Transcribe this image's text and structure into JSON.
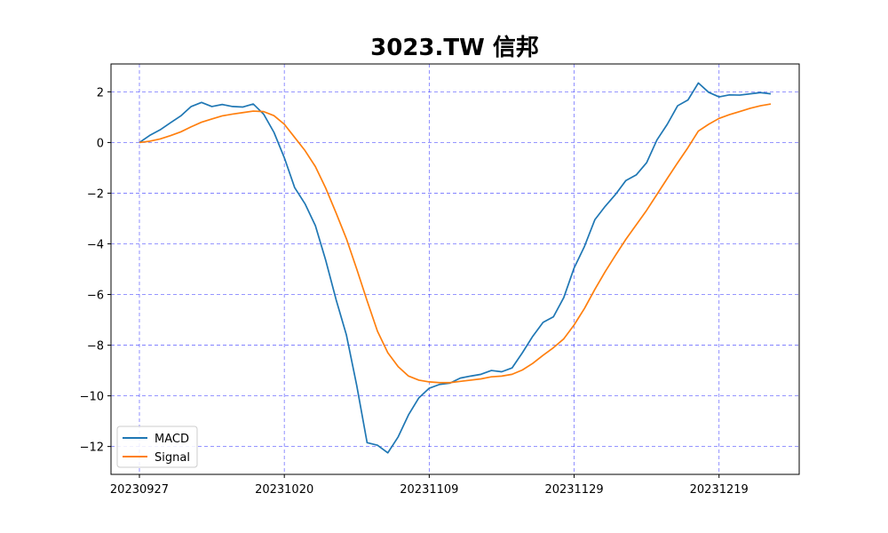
{
  "chart_data": {
    "type": "line",
    "title": "3023.TW 信邦",
    "xlabel": "",
    "ylabel": "",
    "ylim": [
      -13.1,
      3.1
    ],
    "yticks": [
      2,
      0,
      -2,
      -4,
      -6,
      -8,
      -10,
      -12
    ],
    "ytick_labels": [
      "2",
      "0",
      "−2",
      "−4",
      "−6",
      "−8",
      "−10",
      "−12"
    ],
    "xticks": [
      {
        "index": 0,
        "label": "20230927"
      },
      {
        "index": 14,
        "label": "20231020"
      },
      {
        "index": 28,
        "label": "20231109"
      },
      {
        "index": 42,
        "label": "20231129"
      },
      {
        "index": 56,
        "label": "20231219"
      }
    ],
    "x_count": 62,
    "grid": true,
    "legend_position": "lower-left",
    "series": [
      {
        "name": "MACD",
        "color": "#1f77b4",
        "values": [
          0.0,
          0.28,
          0.5,
          0.78,
          1.05,
          1.42,
          1.58,
          1.42,
          1.5,
          1.42,
          1.4,
          1.52,
          1.12,
          0.4,
          -0.6,
          -1.78,
          -2.42,
          -3.28,
          -4.65,
          -6.2,
          -7.6,
          -9.6,
          -11.85,
          -11.95,
          -12.25,
          -11.62,
          -10.75,
          -10.08,
          -9.7,
          -9.55,
          -9.5,
          -9.3,
          -9.22,
          -9.15,
          -9.0,
          -9.05,
          -8.9,
          -8.3,
          -7.65,
          -7.1,
          -6.88,
          -6.12,
          -4.95,
          -4.1,
          -3.05,
          -2.52,
          -2.05,
          -1.5,
          -1.28,
          -0.8,
          0.1,
          0.72,
          1.45,
          1.68,
          2.35,
          1.98,
          1.8,
          1.88,
          1.87,
          1.92,
          1.97,
          1.92
        ]
      },
      {
        "name": "Signal",
        "color": "#ff7f0e",
        "values": [
          0.0,
          0.05,
          0.14,
          0.27,
          0.42,
          0.62,
          0.8,
          0.93,
          1.05,
          1.12,
          1.18,
          1.24,
          1.22,
          1.06,
          0.72,
          0.2,
          -0.32,
          -0.95,
          -1.8,
          -2.78,
          -3.8,
          -5.0,
          -6.25,
          -7.45,
          -8.3,
          -8.85,
          -9.22,
          -9.38,
          -9.45,
          -9.48,
          -9.48,
          -9.43,
          -9.38,
          -9.33,
          -9.25,
          -9.22,
          -9.15,
          -8.98,
          -8.72,
          -8.4,
          -8.1,
          -7.75,
          -7.2,
          -6.55,
          -5.8,
          -5.1,
          -4.45,
          -3.82,
          -3.25,
          -2.68,
          -2.05,
          -1.42,
          -0.8,
          -0.2,
          0.45,
          0.72,
          0.95,
          1.1,
          1.22,
          1.35,
          1.45,
          1.52
        ]
      }
    ]
  }
}
